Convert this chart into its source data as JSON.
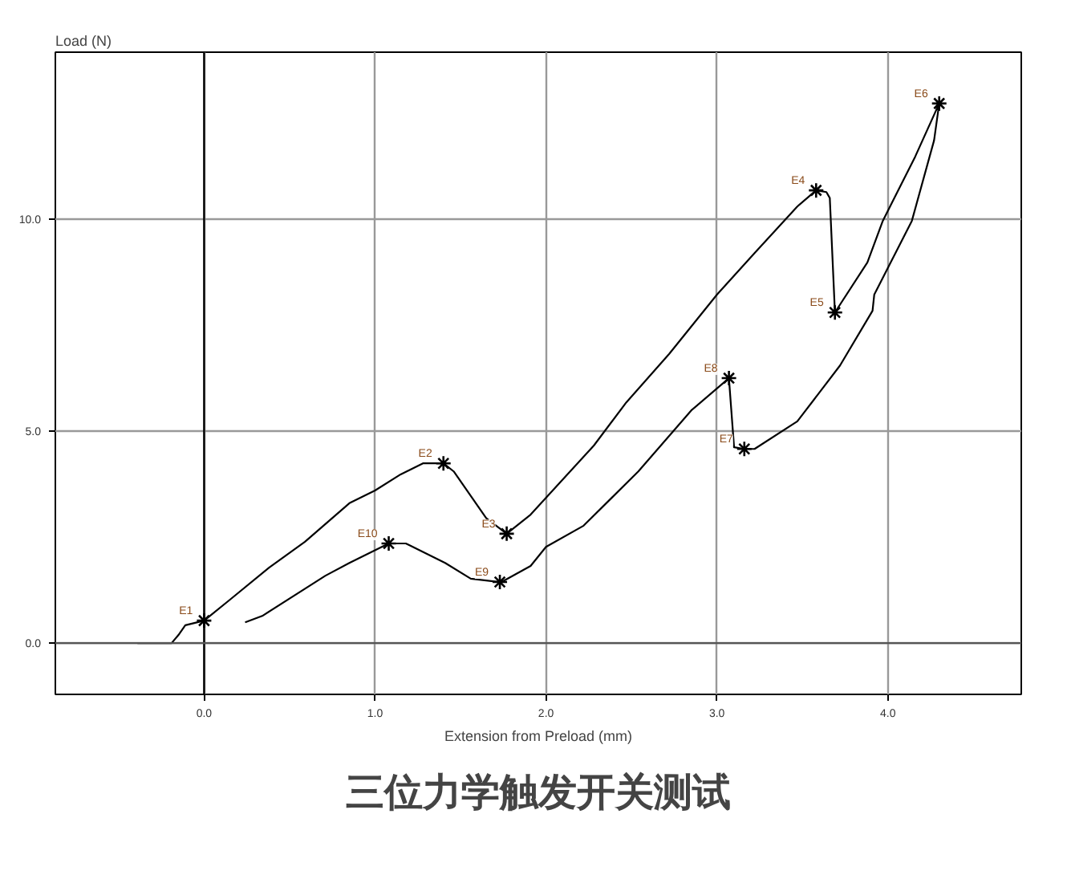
{
  "chart_data": {
    "type": "line",
    "title": "三位力学触发开关测试",
    "xlabel": "Extension from Preload (mm)",
    "ylabel": "Load (N)",
    "xlim": [
      -0.87,
      4.78
    ],
    "ylim": [
      -1.21,
      13.94
    ],
    "xticks": [
      {
        "value": 0,
        "label": "0.0"
      },
      {
        "value": 1,
        "label": "1.0"
      },
      {
        "value": 2,
        "label": "2.0"
      },
      {
        "value": 3,
        "label": "3.0"
      },
      {
        "value": 4,
        "label": "4.0"
      }
    ],
    "yticks": [
      {
        "value": 0,
        "label": "0.0"
      },
      {
        "value": 5,
        "label": "5.0"
      },
      {
        "value": 10,
        "label": "10.0"
      }
    ],
    "grid": true,
    "ref_lines": [
      {
        "axis": "x",
        "value": 0,
        "color": "#000000"
      },
      {
        "axis": "y",
        "value": 0,
        "color": "#555555"
      }
    ],
    "series": [
      {
        "color": "#000000",
        "line_style": "solid",
        "marker": "none",
        "x": [
          -0.39,
          -0.19,
          -0.15,
          -0.11,
          0,
          0.15,
          0.38,
          0.59,
          0.85,
          1.0,
          1.15,
          1.28,
          1.4,
          1.46,
          1.65,
          1.77,
          1.91,
          2.28,
          2.47,
          2.72,
          3.0,
          3.22,
          3.47,
          3.58,
          3.64,
          3.66,
          3.69,
          3.88,
          3.97,
          4.16,
          4.3,
          4.27,
          4.14,
          3.92,
          3.91,
          3.72,
          3.47,
          3.22,
          3.16,
          3.1,
          3.07,
          2.85,
          2.54,
          2.22,
          2.0,
          1.91,
          1.74,
          1.73,
          1.56,
          1.41,
          1.18,
          1.08,
          0.85,
          0.71,
          0.34,
          0.24
        ],
        "values": [
          0,
          0,
          0.19,
          0.42,
          0.53,
          1.02,
          1.78,
          2.39,
          3.3,
          3.6,
          3.98,
          4.24,
          4.24,
          4.05,
          2.95,
          2.58,
          3.03,
          4.66,
          5.68,
          6.82,
          8.22,
          9.2,
          10.3,
          10.68,
          10.64,
          10.5,
          7.8,
          8.98,
          9.96,
          11.48,
          12.73,
          11.86,
          9.96,
          8.22,
          7.84,
          6.55,
          5.23,
          4.58,
          4.58,
          4.62,
          6.25,
          5.49,
          4.05,
          2.77,
          2.27,
          1.82,
          1.44,
          1.44,
          1.52,
          1.89,
          2.35,
          2.35,
          1.89,
          1.59,
          0.64,
          0.49
        ]
      },
      {
        "type": "scatter",
        "color": "#000000",
        "marker": "cross",
        "x": [
          0,
          1.4,
          1.77,
          3.58,
          3.69,
          4.3,
          3.16,
          3.07,
          1.73,
          1.08
        ],
        "values": [
          0.53,
          4.24,
          2.58,
          10.68,
          7.8,
          12.73,
          4.58,
          6.25,
          1.44,
          2.35
        ],
        "value_labels": [
          "E1",
          "E2",
          "E3",
          "E4",
          "E5",
          "E6",
          "E7",
          "E8",
          "E9",
          "E10"
        ]
      }
    ]
  }
}
